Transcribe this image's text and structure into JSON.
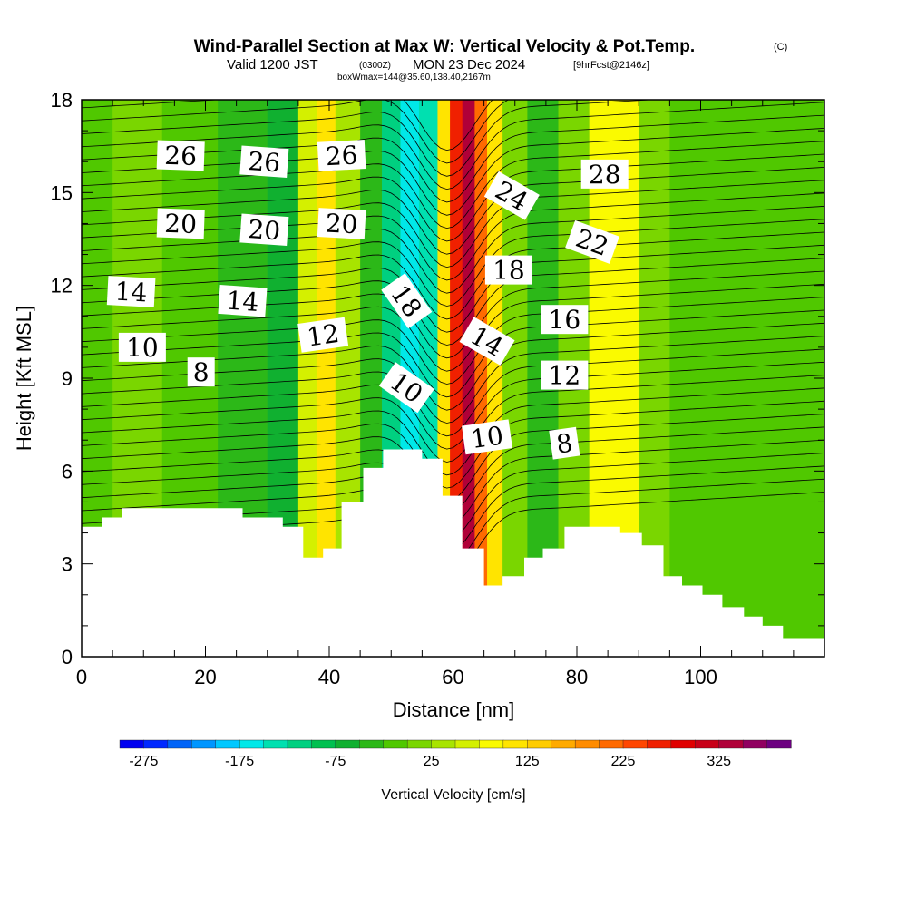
{
  "header": {
    "title": "Wind-Parallel Section at Max W: Vertical Velocity & Pot.Temp.",
    "copyright": "(C)",
    "valid_prefix": "Valid 1200 JST",
    "utc": "(0300Z)",
    "valid_date": "MON 23 Dec 2024",
    "forecast": "[9hrFcst@2146z]",
    "box_info": "boxWmax=144@35.60,138.40,2167m"
  },
  "chart_data": {
    "type": "heatmap",
    "title": "Wind-Parallel Section at Max W: Vertical Velocity & Pot.Temp.",
    "xlabel": "Distance [nm]",
    "ylabel": "Height [Kft MSL]",
    "xlim": [
      0,
      120
    ],
    "ylim": [
      0,
      18
    ],
    "x_ticks": [
      "0",
      "20",
      "40",
      "60",
      "80",
      "100"
    ],
    "y_ticks": [
      "0",
      "3",
      "6",
      "9",
      "12",
      "15",
      "18"
    ],
    "terrain_kft": [
      [
        0,
        4.2
      ],
      [
        3.3,
        4.5
      ],
      [
        6.5,
        4.8
      ],
      [
        26,
        4.5
      ],
      [
        32.5,
        4.2
      ],
      [
        35.8,
        3.2
      ],
      [
        39,
        3.5
      ],
      [
        42,
        5.0
      ],
      [
        45.5,
        6.1
      ],
      [
        48.7,
        6.7
      ],
      [
        55,
        6.4
      ],
      [
        58.3,
        5.2
      ],
      [
        61.5,
        3.5
      ],
      [
        65,
        2.3
      ],
      [
        68,
        2.6
      ],
      [
        71.5,
        3.2
      ],
      [
        74.5,
        3.5
      ],
      [
        78,
        4.2
      ],
      [
        87,
        4.0
      ],
      [
        90.5,
        3.6
      ],
      [
        94,
        2.6
      ],
      [
        97,
        2.3
      ],
      [
        100.3,
        2.0
      ],
      [
        103.5,
        1.6
      ],
      [
        107,
        1.3
      ],
      [
        110,
        1.0
      ],
      [
        113.3,
        0.6
      ],
      [
        120,
        0.6
      ]
    ],
    "w_columns": [
      {
        "x": [
          0,
          5
        ],
        "w": -25
      },
      {
        "x": [
          5,
          13
        ],
        "w": 0
      },
      {
        "x": [
          13,
          22
        ],
        "w": -25
      },
      {
        "x": [
          22,
          30
        ],
        "w": -50
      },
      {
        "x": [
          30,
          35
        ],
        "w": -75
      },
      {
        "x": [
          35,
          38
        ],
        "w": 50
      },
      {
        "x": [
          38,
          41
        ],
        "w": 100
      },
      {
        "x": [
          41,
          45
        ],
        "w": 25
      },
      {
        "x": [
          45,
          48.5
        ],
        "w": -50
      },
      {
        "x": [
          48.5,
          51.5
        ],
        "w": -125
      },
      {
        "x": [
          51.5,
          54.5
        ],
        "w": -175
      },
      {
        "x": [
          54.5,
          57.5
        ],
        "w": -150
      },
      {
        "x": [
          57.5,
          59.5
        ],
        "w": 100
      },
      {
        "x": [
          59.5,
          61.5
        ],
        "w": 250
      },
      {
        "x": [
          61.5,
          63.5
        ],
        "w": 325
      },
      {
        "x": [
          63.5,
          65.5
        ],
        "w": 200
      },
      {
        "x": [
          65.5,
          68
        ],
        "w": 100
      },
      {
        "x": [
          68,
          72
        ],
        "w": 0
      },
      {
        "x": [
          72,
          77
        ],
        "w": -50
      },
      {
        "x": [
          77,
          82
        ],
        "w": 0
      },
      {
        "x": [
          82,
          90
        ],
        "w": 75
      },
      {
        "x": [
          90,
          95
        ],
        "w": 0
      },
      {
        "x": [
          95,
          112
        ],
        "w": -25
      },
      {
        "x": [
          112,
          120
        ],
        "w": -25
      }
    ],
    "theta_labels": [
      {
        "text": "26",
        "x": 16,
        "y": 16.2,
        "angle": 2
      },
      {
        "text": "26",
        "x": 29.5,
        "y": 16.0,
        "angle": 4
      },
      {
        "text": "26",
        "x": 42,
        "y": 16.2,
        "angle": -3
      },
      {
        "text": "20",
        "x": 16,
        "y": 14.0,
        "angle": 2
      },
      {
        "text": "20",
        "x": 29.5,
        "y": 13.8,
        "angle": 4
      },
      {
        "text": "20",
        "x": 42,
        "y": 14.0,
        "angle": 3
      },
      {
        "text": "14",
        "x": 8,
        "y": 11.8,
        "angle": 3
      },
      {
        "text": "14",
        "x": 26,
        "y": 11.5,
        "angle": 4
      },
      {
        "text": "12",
        "x": 39,
        "y": 10.4,
        "angle": -8
      },
      {
        "text": "10",
        "x": 9.8,
        "y": 10.0,
        "angle": 0
      },
      {
        "text": "8",
        "x": 19.3,
        "y": 9.2,
        "angle": 0
      },
      {
        "text": "18",
        "x": 52.5,
        "y": 11.5,
        "angle": 55
      },
      {
        "text": "10",
        "x": 52.5,
        "y": 8.7,
        "angle": 35
      },
      {
        "text": "24",
        "x": 69.5,
        "y": 14.9,
        "angle": 30
      },
      {
        "text": "18",
        "x": 69,
        "y": 12.5,
        "angle": 0
      },
      {
        "text": "14",
        "x": 65.5,
        "y": 10.2,
        "angle": 30
      },
      {
        "text": "10",
        "x": 65.5,
        "y": 7.1,
        "angle": -8
      },
      {
        "text": "28",
        "x": 84.5,
        "y": 15.6,
        "angle": 0
      },
      {
        "text": "22",
        "x": 82.5,
        "y": 13.4,
        "angle": 20
      },
      {
        "text": "16",
        "x": 78,
        "y": 10.9,
        "angle": 0
      },
      {
        "text": "12",
        "x": 78,
        "y": 9.1,
        "angle": 0
      },
      {
        "text": "8",
        "x": 78,
        "y": 6.9,
        "angle": -8
      }
    ]
  },
  "colorbar": {
    "label": "Vertical Velocity [cm/s]",
    "tick_labels": [
      "-275",
      "-175",
      "-75",
      "25",
      "125",
      "225",
      "325"
    ],
    "levels": [
      -300,
      -275,
      -250,
      -225,
      -200,
      -175,
      -150,
      -125,
      -100,
      -75,
      -50,
      -25,
      0,
      25,
      50,
      75,
      100,
      125,
      150,
      175,
      200,
      225,
      250,
      275,
      300,
      325,
      350,
      375,
      400
    ],
    "colors": [
      "#0000f0",
      "#0028ff",
      "#0064f8",
      "#0096ff",
      "#00c8ff",
      "#00e8e8",
      "#00e0b0",
      "#00d080",
      "#00c050",
      "#10b030",
      "#2cb818",
      "#50c800",
      "#7ad600",
      "#a8e400",
      "#d4f000",
      "#fafa00",
      "#ffe400",
      "#ffcc00",
      "#ffaa00",
      "#ff8c00",
      "#ff6a00",
      "#ff4600",
      "#f02000",
      "#e00000",
      "#c80018",
      "#b00038",
      "#900060",
      "#6c0080"
    ]
  },
  "colors": {
    "terrain": "#ffffff",
    "contour": "#000000"
  }
}
